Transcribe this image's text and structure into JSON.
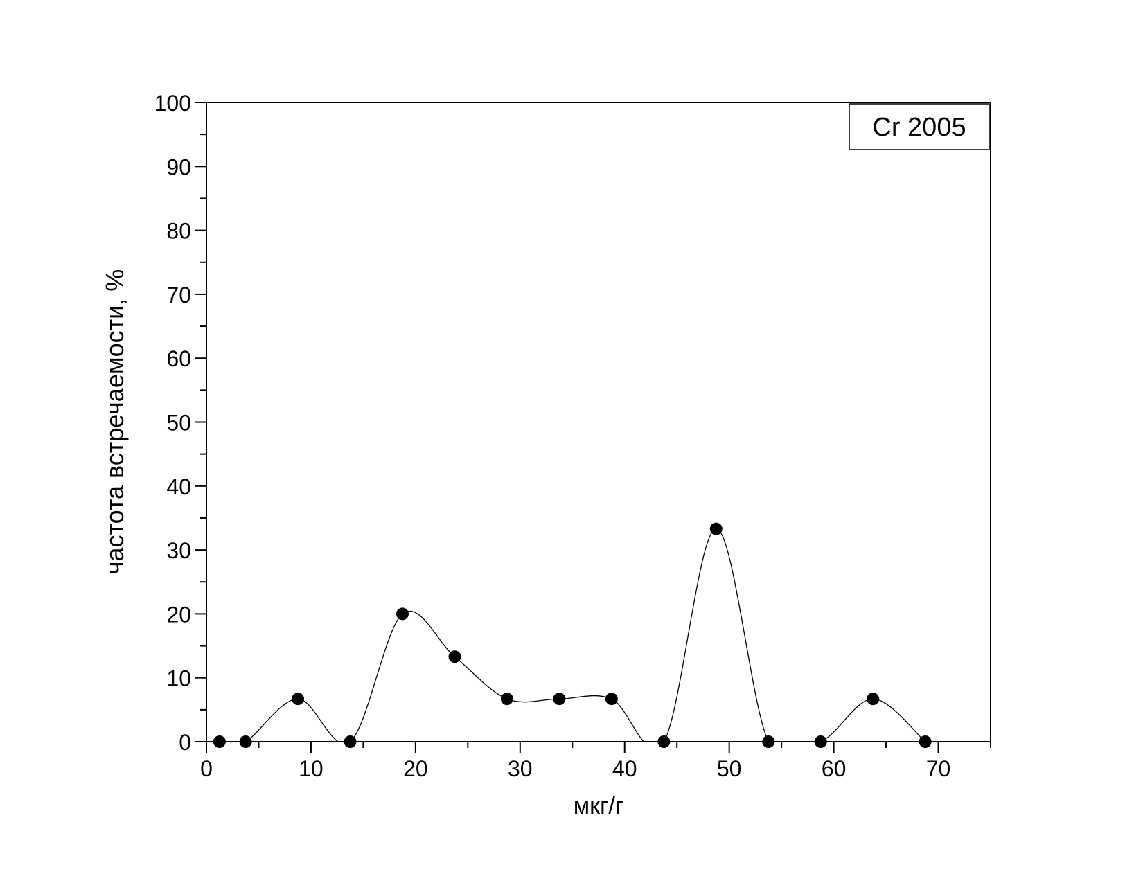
{
  "chart_data": {
    "type": "scatter",
    "x_label": "мкг/г",
    "y_label": "частота встречаемости, %",
    "xlim": [
      0,
      75
    ],
    "xticks": [
      0,
      10,
      20,
      30,
      40,
      50,
      60,
      70
    ],
    "ylim": [
      0,
      100
    ],
    "yticks": [
      0,
      10,
      20,
      30,
      40,
      50,
      60,
      70,
      80,
      90,
      100
    ],
    "legend": "upper right",
    "smooth_line": true,
    "series": [
      {
        "name": "Cr 2005",
        "color": "#000000",
        "x": [
          1.25,
          3.75,
          8.75,
          13.75,
          18.75,
          23.75,
          28.75,
          33.75,
          38.75,
          43.75,
          48.75,
          53.75,
          58.75,
          63.75,
          68.75
        ],
        "values": [
          0,
          0,
          6.7,
          0,
          20,
          13.3,
          6.7,
          6.7,
          6.7,
          0,
          33.3,
          0,
          0,
          6.7,
          0
        ]
      }
    ]
  }
}
